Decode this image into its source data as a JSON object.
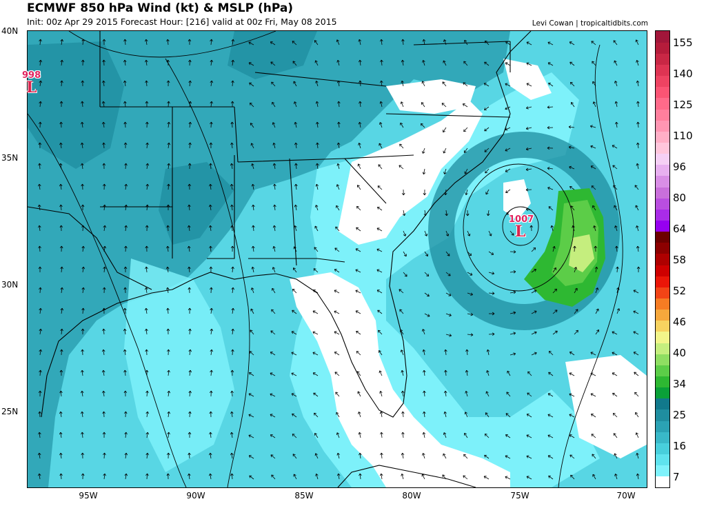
{
  "header": {
    "title": "ECMWF 850 hPa Wind (kt) & MSLP (hPa)",
    "subtitle": "Init: 00z Apr 29 2015   Forecast Hour: [216]   valid at 00z Fri, May 08 2015",
    "credit": "Levi Cowan | tropicaltidbits.com"
  },
  "map": {
    "lat_labels": [
      "40N",
      "35N",
      "30N",
      "25N"
    ],
    "lon_labels": [
      "95W",
      "90W",
      "85W",
      "80W",
      "75W",
      "70W"
    ],
    "lows": [
      {
        "value": "998",
        "symbol": "L"
      },
      {
        "value": "1007",
        "symbol": "L"
      }
    ],
    "colors": {
      "land_shade": "#2fa3b4",
      "water_shade": "#58d6e4",
      "light_shade": "#7ff2fb",
      "calm": "#ffffff",
      "jet_core": "#4cc94a",
      "jet_max": "#c8f27a"
    }
  },
  "colorbar": {
    "labels": [
      "155",
      "140",
      "125",
      "110",
      "96",
      "80",
      "64",
      "58",
      "52",
      "46",
      "40",
      "34",
      "25",
      "16",
      "7"
    ],
    "colors": [
      "#ffffff",
      "#7ff2fb",
      "#5fe3ee",
      "#48cfdc",
      "#39b8c8",
      "#2ba2b4",
      "#1f8ea0",
      "#11798c",
      "#0aa038",
      "#2eb832",
      "#5ccd48",
      "#8fde62",
      "#c5ee7e",
      "#f2f58a",
      "#f7d360",
      "#f6a83c",
      "#f67c23",
      "#f24416",
      "#ea1608",
      "#ce0000",
      "#ae0000",
      "#8c0000",
      "#6c0000",
      "#9600f0",
      "#a92ce8",
      "#b94ee0",
      "#c96fdb",
      "#d98ee6",
      "#e8b0f0",
      "#f5d0f5",
      "#ffc6dc",
      "#ffafc7",
      "#ff96b3",
      "#ff7f9d",
      "#ff6a8a",
      "#fb5474",
      "#ee4362",
      "#de3453",
      "#c92745",
      "#b51c3b",
      "#a2163a"
    ]
  }
}
